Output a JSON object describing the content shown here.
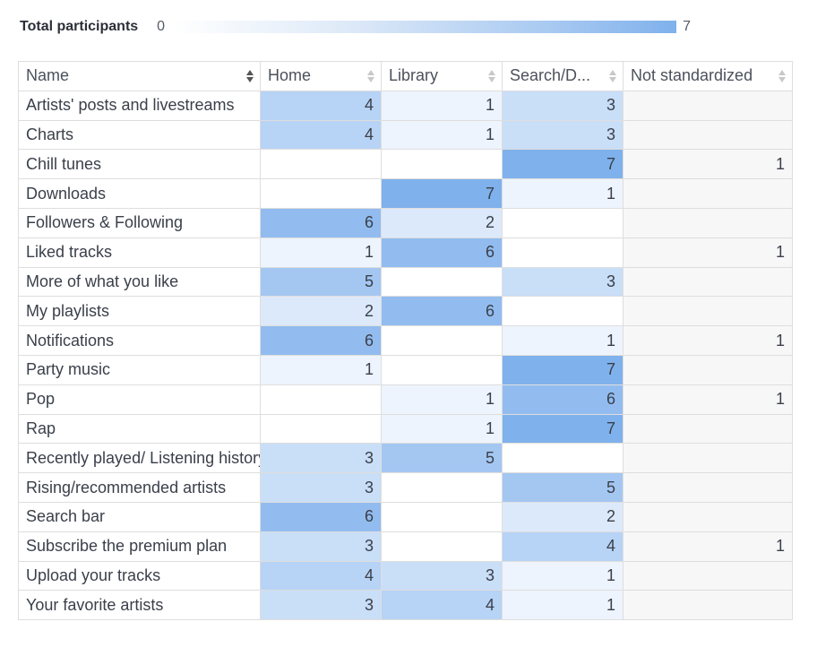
{
  "legend": {
    "title": "Total participants",
    "min": "0",
    "max": "7"
  },
  "columns": [
    "Name",
    "Home",
    "Library",
    "Search/D...",
    "Not standardized"
  ],
  "rows": [
    {
      "name": "Artists' posts and livestreams",
      "values": [
        4,
        1,
        3,
        null
      ]
    },
    {
      "name": "Charts",
      "values": [
        4,
        1,
        3,
        null
      ]
    },
    {
      "name": "Chill tunes",
      "values": [
        null,
        null,
        7,
        1
      ]
    },
    {
      "name": "Downloads",
      "values": [
        null,
        7,
        1,
        null
      ]
    },
    {
      "name": "Followers & Following",
      "values": [
        6,
        2,
        null,
        null
      ]
    },
    {
      "name": "Liked tracks",
      "values": [
        1,
        6,
        null,
        1
      ]
    },
    {
      "name": "More of what you like",
      "values": [
        5,
        null,
        3,
        null
      ]
    },
    {
      "name": "My playlists",
      "values": [
        2,
        6,
        null,
        null
      ]
    },
    {
      "name": "Notifications",
      "values": [
        6,
        null,
        1,
        1
      ]
    },
    {
      "name": "Party music",
      "values": [
        1,
        null,
        7,
        null
      ]
    },
    {
      "name": "Pop",
      "values": [
        null,
        1,
        6,
        1
      ]
    },
    {
      "name": "Rap",
      "values": [
        null,
        1,
        7,
        null
      ]
    },
    {
      "name": "Recently played/ Listening history",
      "values": [
        3,
        5,
        null,
        null
      ]
    },
    {
      "name": "Rising/recommended artists",
      "values": [
        3,
        null,
        5,
        null
      ]
    },
    {
      "name": "Search bar",
      "values": [
        6,
        null,
        2,
        null
      ]
    },
    {
      "name": "Subscribe the premium plan",
      "values": [
        3,
        null,
        4,
        1
      ]
    },
    {
      "name": "Upload your tracks",
      "values": [
        4,
        3,
        1,
        null
      ]
    },
    {
      "name": "Your favorite artists",
      "values": [
        3,
        4,
        1,
        null
      ]
    }
  ],
  "max_value": 7,
  "colors": {
    "scale_low": "#eef4fd",
    "scale_high": "#7fb1ec",
    "not_standardized_bg": "#f7f7f7"
  }
}
